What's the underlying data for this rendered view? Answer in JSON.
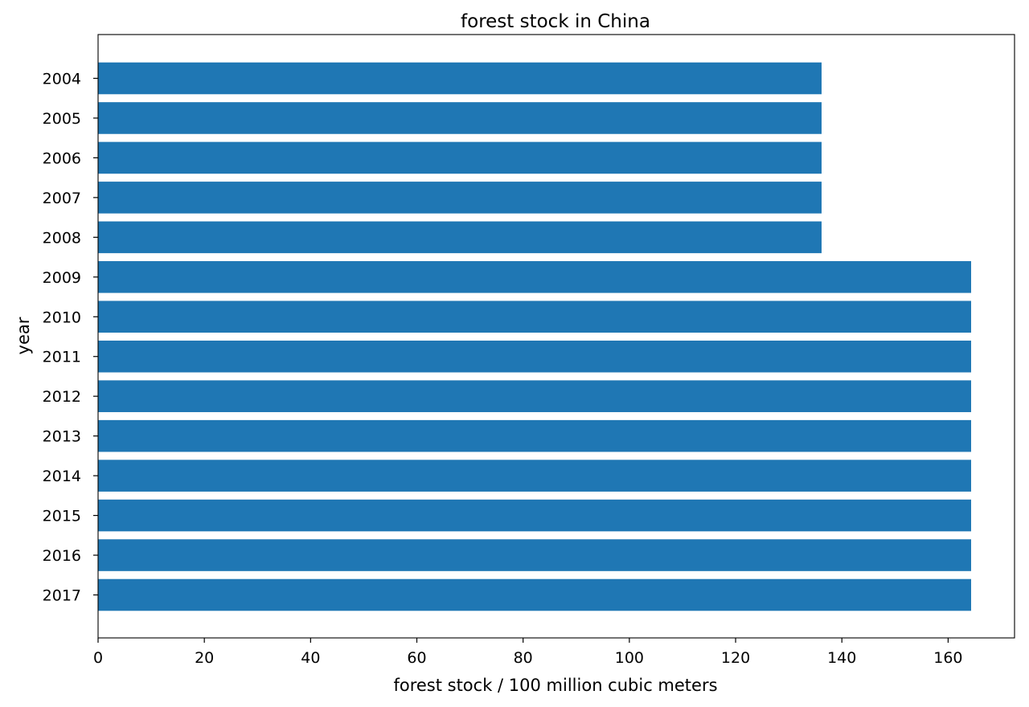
{
  "chart_data": {
    "type": "bar",
    "orientation": "horizontal",
    "title": "forest stock in China",
    "xlabel": "forest stock / 100 million cubic meters",
    "ylabel": "year",
    "categories": [
      "2004",
      "2005",
      "2006",
      "2007",
      "2008",
      "2009",
      "2010",
      "2011",
      "2012",
      "2013",
      "2014",
      "2015",
      "2016",
      "2017"
    ],
    "values": [
      136.18,
      136.18,
      136.18,
      136.18,
      136.18,
      164.33,
      164.33,
      164.33,
      164.33,
      164.33,
      164.33,
      164.33,
      164.33,
      164.33
    ],
    "xlim": [
      0,
      172.5
    ],
    "xticks": [
      0,
      20,
      40,
      60,
      80,
      100,
      120,
      140,
      160
    ],
    "grid": false,
    "bar_color": "#1f77b4"
  }
}
